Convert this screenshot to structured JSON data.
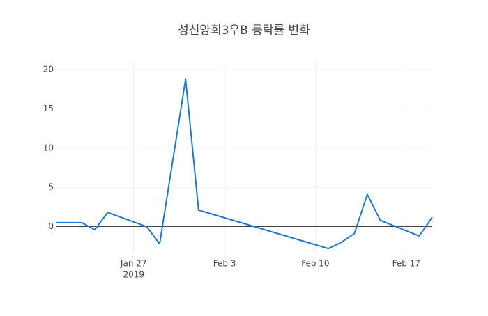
{
  "chart_data": {
    "type": "line",
    "title": "성신양회3우B 등락률 변화",
    "x": [
      "2019-01-21",
      "2019-01-22",
      "2019-01-23",
      "2019-01-24",
      "2019-01-25",
      "2019-01-28",
      "2019-01-29",
      "2019-01-31",
      "2019-02-01",
      "2019-02-11",
      "2019-02-12",
      "2019-02-13",
      "2019-02-14",
      "2019-02-15",
      "2019-02-18",
      "2019-02-19"
    ],
    "series": [
      {
        "name": "등락률",
        "color": "#1f77d4",
        "values": [
          0.5,
          0.5,
          0.5,
          -0.4,
          1.8,
          0,
          -2.2,
          18.8,
          2.1,
          -2.8,
          -2.0,
          -0.9,
          4.1,
          0.8,
          -1.2,
          1.2
        ]
      }
    ],
    "xlim": [
      "2019-01-21",
      "2019-02-19"
    ],
    "xticks": [
      {
        "value": "2019-01-27",
        "label": "Jan 27"
      },
      {
        "value": "2019-02-03",
        "label": "Feb 3"
      },
      {
        "value": "2019-02-10",
        "label": "Feb 10"
      },
      {
        "value": "2019-02-17",
        "label": "Feb 17"
      }
    ],
    "xtick_year": "2019",
    "ylim": [
      -3.5,
      20.9
    ],
    "yticks": [
      0,
      5,
      10,
      15,
      20
    ],
    "grid": true,
    "zero_line": true
  }
}
